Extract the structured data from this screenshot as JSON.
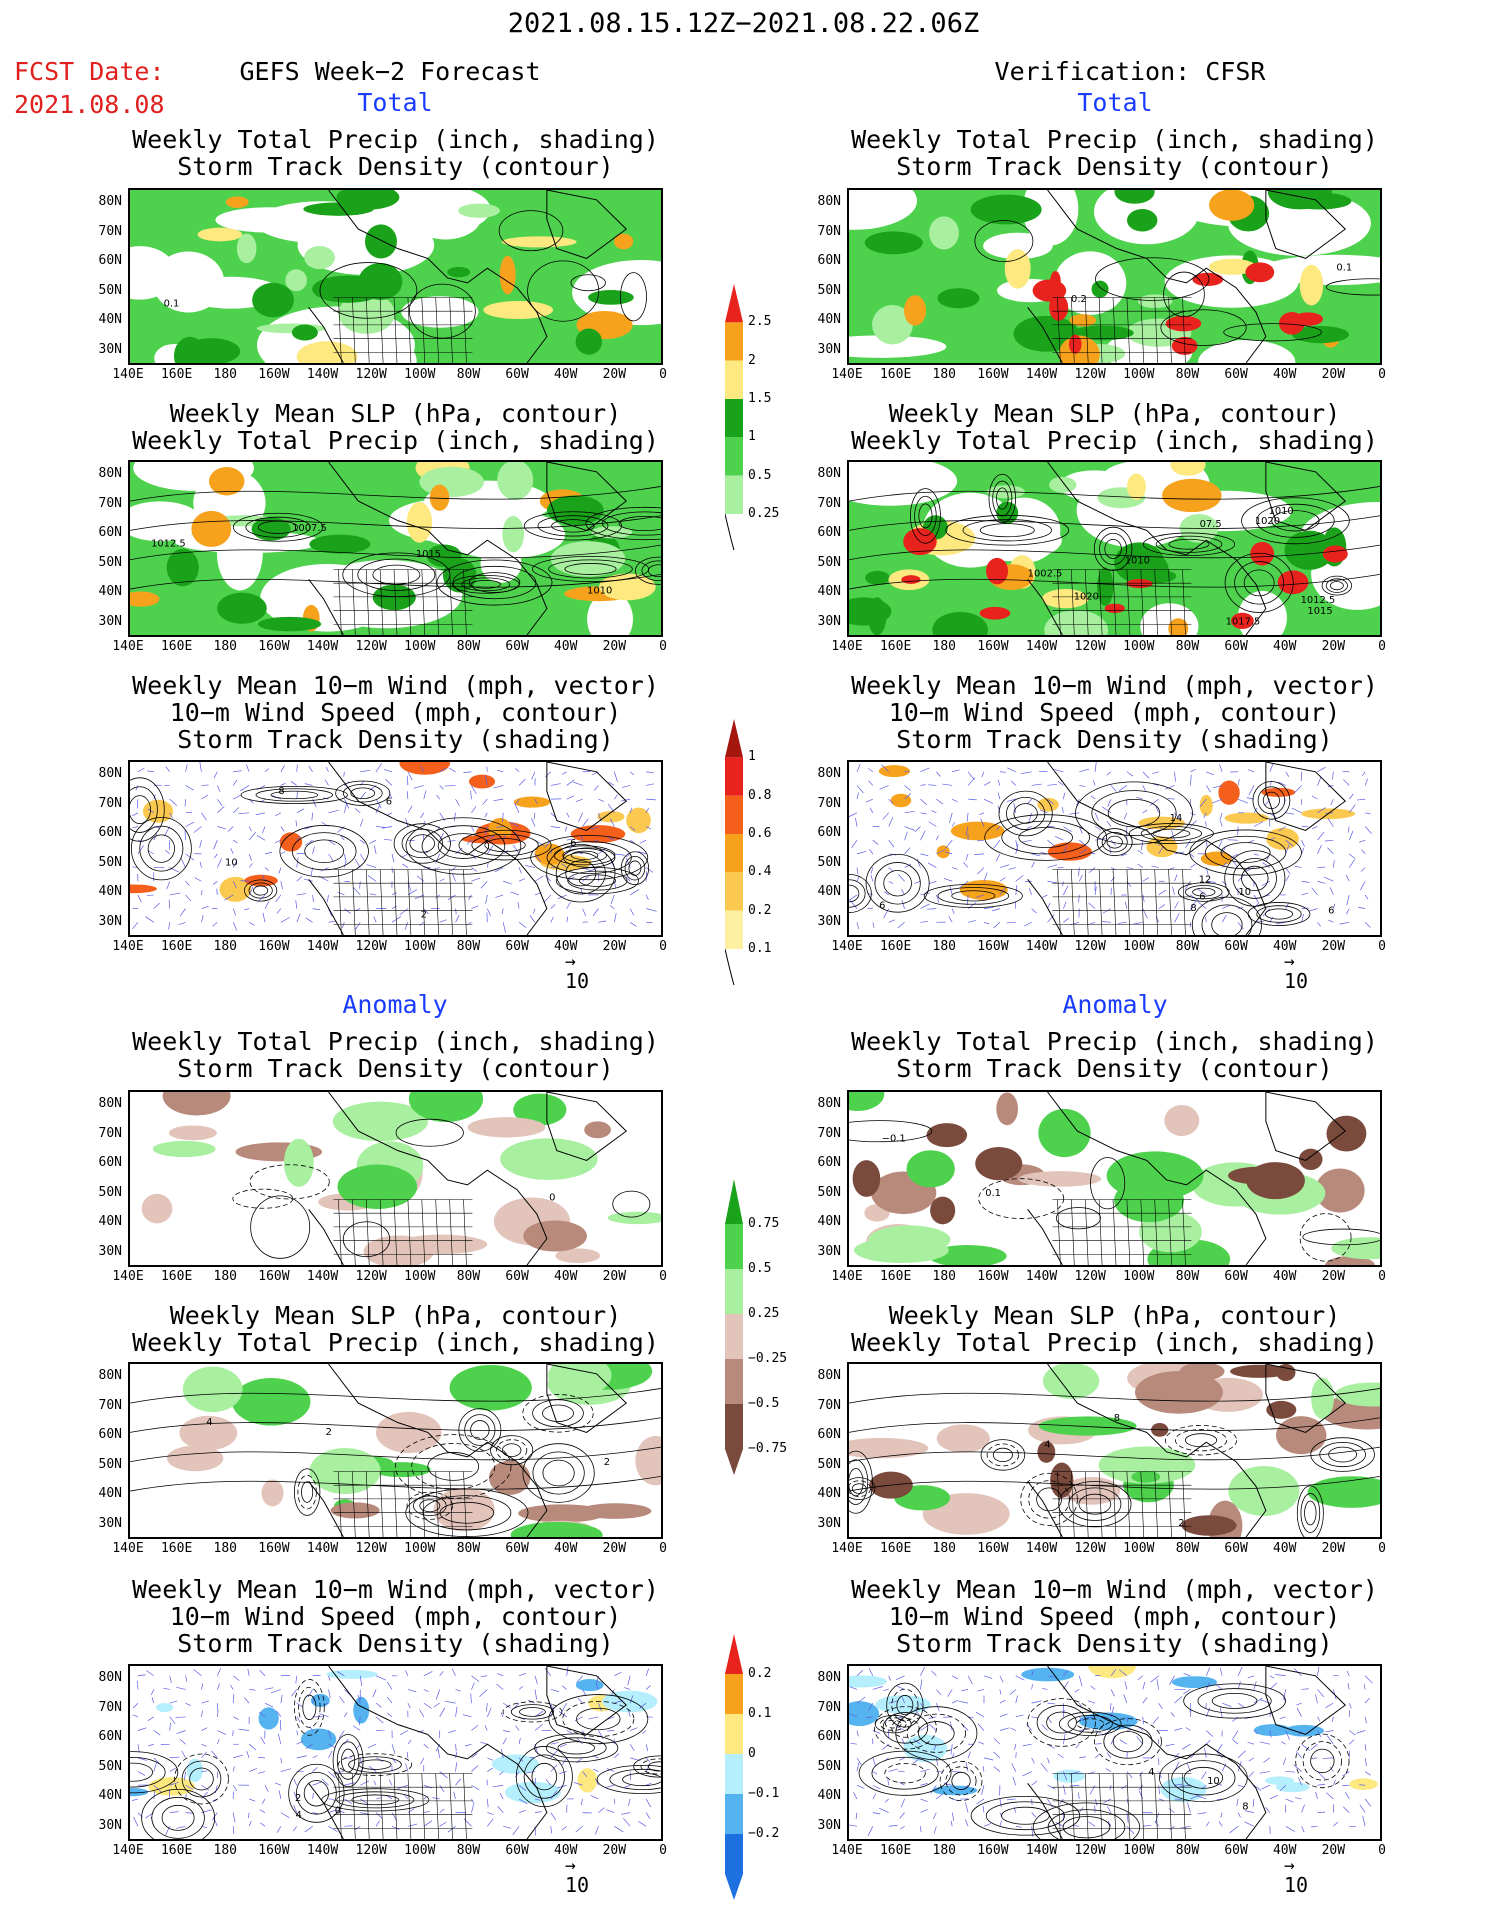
{
  "header": {
    "date_range": "2021.08.15.12Z−2021.08.22.06Z",
    "fcst_label": "FCST Date:",
    "fcst_date": "2021.08.08",
    "left_heading": "GEFS Week−2 Forecast",
    "right_heading": "Verification: CFSR",
    "total_label": "Total",
    "anomaly_label": "Anomaly"
  },
  "panel_titles": {
    "precip_storm": [
      "Weekly Total Precip (inch, shading)",
      "Storm Track Density (contour)"
    ],
    "slp_precip": [
      "Weekly Mean SLP (hPa, contour)",
      "Weekly Total Precip (inch, shading)"
    ],
    "wind_storm": [
      "Weekly Mean 10−m Wind (mph, vector)",
      "10−m Wind Speed (mph, contour)",
      "Storm Track Density (shading)"
    ]
  },
  "axes": {
    "lat_ticks": [
      "80N",
      "70N",
      "60N",
      "50N",
      "40N",
      "30N"
    ],
    "lon_ticks": [
      "140E",
      "160E",
      "180",
      "160W",
      "140W",
      "120W",
      "100W",
      "80W",
      "60W",
      "40W",
      "20W",
      "0"
    ]
  },
  "vector_reference": "10",
  "colorbars": {
    "total_precip": {
      "labels": [
        "2.5",
        "2",
        "1.5",
        "1",
        "0.5",
        "0.25"
      ],
      "colors": [
        "#e8231e",
        "#f7a21d",
        "#fde97f",
        "#1aa31a",
        "#4ed24e",
        "#a8f0a0"
      ]
    },
    "total_storm": {
      "labels": [
        "1",
        "0.8",
        "0.6",
        "0.4",
        "0.2",
        "0.1"
      ],
      "colors": [
        "#a5160f",
        "#e8231e",
        "#f55f1c",
        "#f7a21d",
        "#fbc94f",
        "#fef0a3"
      ]
    },
    "anom_precip": {
      "labels": [
        "0.75",
        "0.5",
        "0.25",
        "−0.25",
        "−0.5",
        "−0.75"
      ],
      "colors": [
        "#1aa31a",
        "#4ed24e",
        "#a8f0a0",
        "#e3c4bb",
        "#b88a7b",
        "#7a4a3d"
      ]
    },
    "anom_storm": {
      "labels": [
        "0.2",
        "0.1",
        "0",
        "−0.1",
        "−0.2"
      ],
      "colors": [
        "#e8231e",
        "#f7a21d",
        "#fde97f",
        "#b5eefc",
        "#55b4f0",
        "#1e6fe0"
      ]
    }
  },
  "contour_labels": {
    "p1l": [
      "0.1"
    ],
    "p1r": [
      "0.2",
      "0.1"
    ],
    "p2l": [
      "1007.5",
      "1010",
      "1015",
      "1012.5"
    ],
    "p2r": [
      "07.5",
      "1002.5",
      "1010",
      "1010",
      "1012.5",
      "1017.5",
      "1015",
      "1020",
      "1020"
    ],
    "p3l": [
      "2",
      "8",
      "6",
      "10",
      "6"
    ],
    "p3r": [
      "6",
      "8",
      "10",
      "12",
      "6",
      "6",
      "14"
    ],
    "p4l": [
      "0"
    ],
    "p4r": [
      "0.1",
      "−0.1"
    ],
    "p5l": [
      "4",
      "2",
      "2"
    ],
    "p5r": [
      "8",
      "4",
      "2"
    ],
    "p6l": [
      "0",
      "2",
      "4"
    ],
    "p6r": [
      "8",
      "10",
      "4"
    ]
  }
}
